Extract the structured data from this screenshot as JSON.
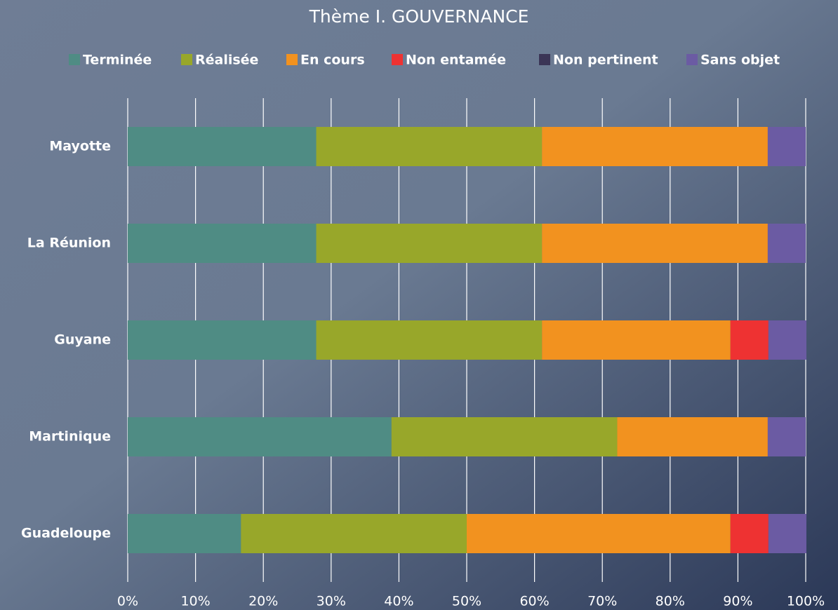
{
  "chart_data": {
    "type": "stacked-barh",
    "title": "Thème I. GOUVERNANCE",
    "categories": [
      "Mayotte",
      "La Réunion",
      "Guyane",
      "Martinique",
      "Guadeloupe"
    ],
    "series": [
      {
        "name": "Terminée",
        "color": "#4f8c84",
        "values": [
          27.8,
          27.8,
          27.8,
          38.9,
          16.7
        ]
      },
      {
        "name": "Réalisée",
        "color": "#98a72a",
        "values": [
          33.3,
          33.3,
          33.3,
          33.3,
          33.3
        ]
      },
      {
        "name": "En cours",
        "color": "#f2921f",
        "values": [
          33.3,
          33.3,
          27.8,
          22.2,
          38.9
        ]
      },
      {
        "name": "Non entamée",
        "color": "#ee3232",
        "values": [
          0,
          0,
          5.6,
          0,
          5.6
        ]
      },
      {
        "name": "Non pertinent",
        "color": "#3b3556",
        "values": [
          0,
          0,
          0,
          0,
          0
        ]
      },
      {
        "name": "Sans objet",
        "color": "#6b5ba3",
        "values": [
          5.6,
          5.6,
          5.6,
          5.6,
          5.6
        ]
      }
    ],
    "xlim": [
      0,
      100
    ],
    "xticks": [
      {
        "value": 0,
        "label": "0%"
      },
      {
        "value": 10,
        "label": "10%"
      },
      {
        "value": 20,
        "label": "20%"
      },
      {
        "value": 30,
        "label": "30%"
      },
      {
        "value": 40,
        "label": "40%"
      },
      {
        "value": 50,
        "label": "50%"
      },
      {
        "value": 60,
        "label": "60%"
      },
      {
        "value": 70,
        "label": "70%"
      },
      {
        "value": 80,
        "label": "80%"
      },
      {
        "value": 90,
        "label": "90%"
      },
      {
        "value": 100,
        "label": "100%"
      }
    ],
    "grid": true,
    "legend": "top"
  }
}
